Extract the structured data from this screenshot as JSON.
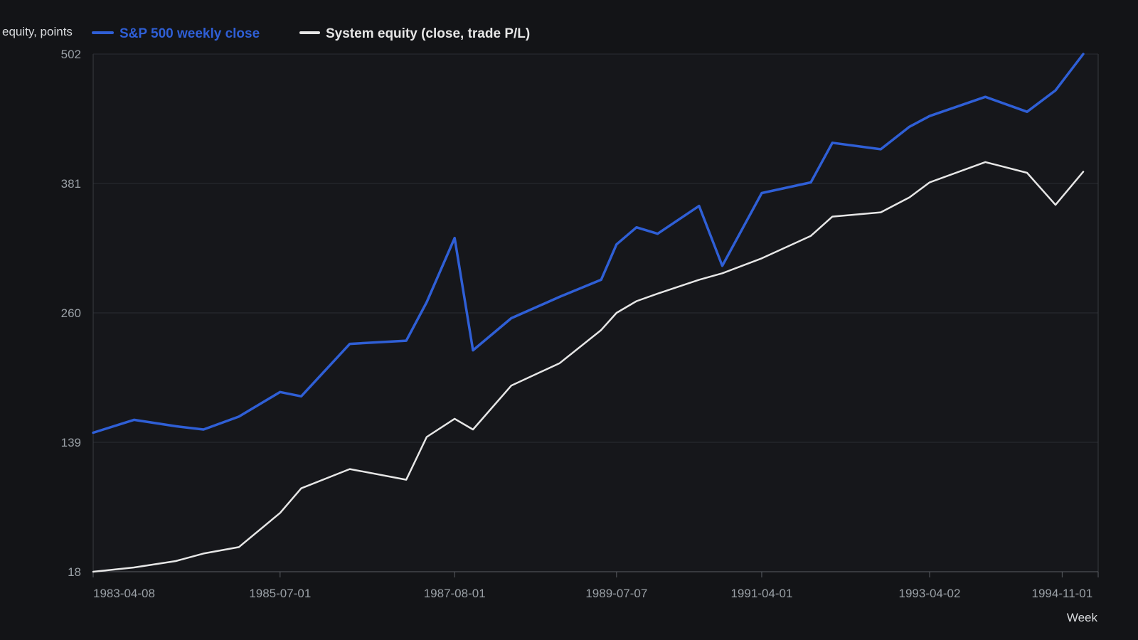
{
  "chart_data": {
    "type": "line",
    "title": "",
    "xlabel": "Week",
    "ylabel": "equity, points",
    "ylim": [
      18,
      502
    ],
    "y_ticks": [
      "18",
      "139",
      "260",
      "381",
      "502"
    ],
    "x_range": [
      "1983-04-08",
      "1995-04-07"
    ],
    "x_ticks": [
      "1983-04-08",
      "1985-07-01",
      "1987-08-01",
      "1989-07-07",
      "1991-04-01",
      "1993-04-02",
      "1994-11-01"
    ],
    "grid": "horizontal",
    "legend_position": "top-left",
    "series": [
      {
        "name": "S&P 500 weekly close",
        "color": "#2f5fd6",
        "x": [
          "1983-04-08",
          "1983-10-03",
          "1984-04-02",
          "1984-08-01",
          "1985-01-02",
          "1985-07-01",
          "1985-10-01",
          "1986-05-01",
          "1987-01-02",
          "1987-04-01",
          "1987-08-01",
          "1987-10-20",
          "1988-04-04",
          "1988-11-01",
          "1989-05-01",
          "1989-07-07",
          "1989-10-02",
          "1990-01-02",
          "1990-07-02",
          "1990-10-11",
          "1991-04-01",
          "1991-11-01",
          "1992-02-03",
          "1992-09-01",
          "1993-01-04",
          "1993-04-02",
          "1993-12-01",
          "1994-06-01",
          "1994-10-03",
          "1995-02-01"
        ],
        "y": [
          148,
          160,
          154,
          151,
          163,
          186,
          182,
          231,
          234,
          270,
          330,
          225,
          255,
          275,
          291,
          324,
          340,
          334,
          360,
          304,
          372,
          382,
          419,
          413,
          434,
          444,
          462,
          448,
          468,
          502
        ]
      },
      {
        "name": "System equity (close, trade P/L)",
        "color": "#e6e6e6",
        "x": [
          "1983-04-08",
          "1983-10-03",
          "1984-04-02",
          "1984-08-01",
          "1985-01-02",
          "1985-07-01",
          "1985-10-01",
          "1986-05-01",
          "1987-01-02",
          "1987-04-01",
          "1987-08-01",
          "1987-10-20",
          "1988-04-04",
          "1988-11-01",
          "1989-05-01",
          "1989-07-07",
          "1989-10-02",
          "1990-01-02",
          "1990-07-02",
          "1990-10-11",
          "1991-04-01",
          "1991-11-01",
          "1992-02-03",
          "1992-09-01",
          "1993-01-04",
          "1993-04-02",
          "1993-12-01",
          "1994-06-01",
          "1994-10-03",
          "1995-02-01"
        ],
        "y": [
          18,
          22,
          28,
          35,
          41,
          73,
          96,
          114,
          104,
          144,
          161,
          151,
          192,
          213,
          244,
          260,
          271,
          278,
          291,
          297,
          311,
          332,
          350,
          354,
          368,
          382,
          401,
          391,
          361,
          392
        ]
      }
    ]
  }
}
